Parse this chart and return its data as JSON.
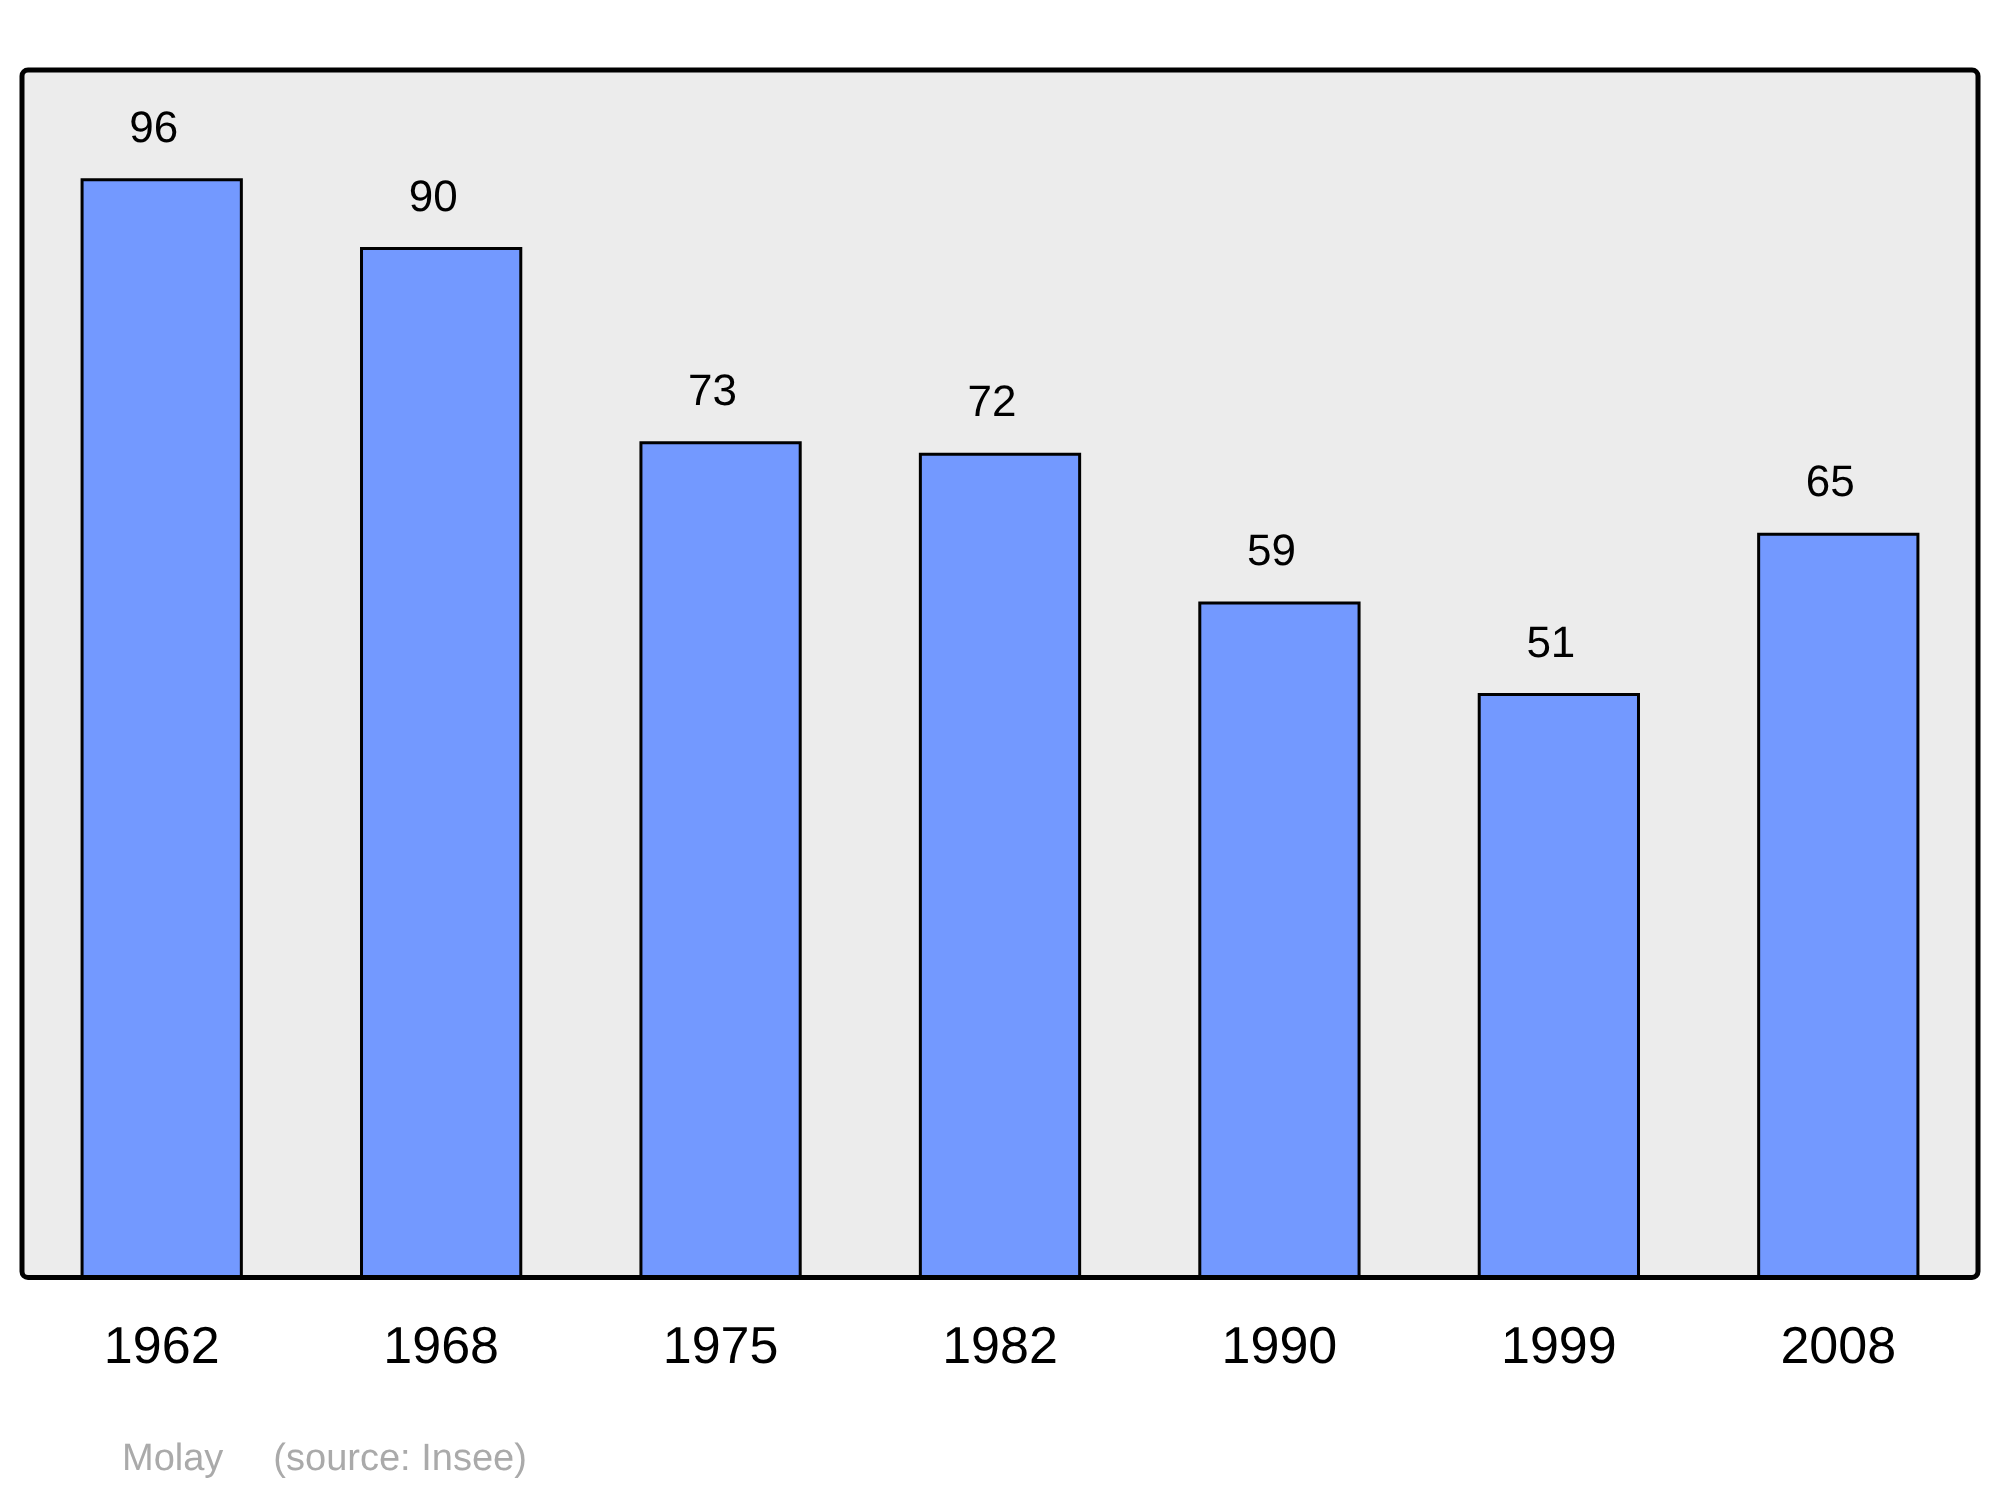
{
  "chart_data": {
    "type": "bar",
    "categories": [
      "1962",
      "1968",
      "1975",
      "1982",
      "1990",
      "1999",
      "2008"
    ],
    "values": [
      96,
      90,
      73,
      72,
      59,
      51,
      65
    ],
    "color": "#7399ff",
    "ylim": [
      0,
      105.6
    ],
    "data_labels": true,
    "legend": false,
    "annotations": [
      "Molay",
      "(source: Insee)"
    ]
  }
}
